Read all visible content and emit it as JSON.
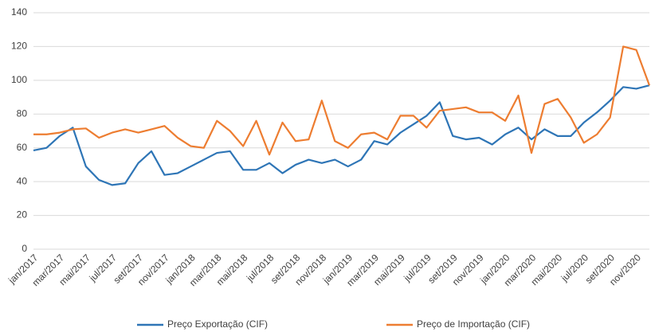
{
  "chart_data": {
    "type": "line",
    "categories": [
      "jan/2017",
      null,
      "mar/2017",
      null,
      "mai/2017",
      null,
      "jul/2017",
      null,
      "set/2017",
      null,
      "nov/2017",
      null,
      "jan/2018",
      null,
      "mar/2018",
      null,
      "mai/2018",
      null,
      "jul/2018",
      null,
      "set/2018",
      null,
      "nov/2018",
      null,
      "jan/2019",
      null,
      "mar/2019",
      null,
      "mai/2019",
      null,
      "jul/2019",
      null,
      "set/2019",
      null,
      "nov/2019",
      null,
      "jan/2020",
      null,
      "mar/2020",
      null,
      "mai/2020",
      null,
      "jul/2020",
      null,
      "set/2020",
      null,
      "nov/2020",
      null
    ],
    "series": [
      {
        "name": "Preço Exportação (CIF)",
        "color": "#2e75b6",
        "values": [
          58.5,
          60,
          67,
          72,
          49,
          41,
          38,
          39,
          51,
          58,
          44,
          45,
          49,
          53,
          57,
          58,
          47,
          47,
          51,
          45,
          50,
          53,
          51,
          53,
          49,
          53,
          64,
          62,
          69,
          74,
          79,
          87,
          67,
          65,
          66,
          62,
          68,
          72,
          65,
          71,
          67,
          67,
          75,
          81,
          88,
          96,
          95,
          97
        ]
      },
      {
        "name": "Preço de Importação (CIF)",
        "color": "#ed7d31",
        "values": [
          68,
          68,
          69,
          71,
          71.5,
          66,
          69,
          71,
          69,
          71,
          73,
          66,
          61,
          60,
          76,
          70,
          61,
          76,
          56,
          75,
          64,
          65,
          88,
          64,
          60,
          68,
          69,
          65,
          79,
          79,
          72,
          82,
          83,
          84,
          81,
          81,
          76,
          91,
          57,
          86,
          89,
          78,
          63,
          68,
          78,
          120,
          118,
          97
        ]
      }
    ],
    "ylim": [
      0,
      140
    ],
    "yticks": [
      0,
      20,
      40,
      60,
      80,
      100,
      120,
      140
    ],
    "grid": true,
    "legend": "bottom"
  }
}
